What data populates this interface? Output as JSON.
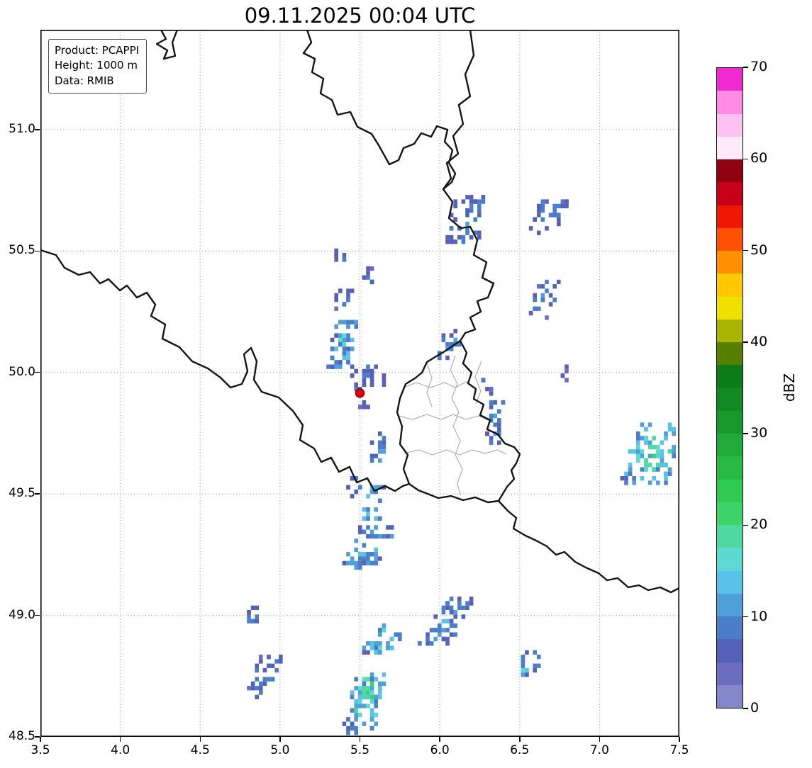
{
  "title": "09.11.2025 00:04 UTC",
  "info_box": {
    "lines": [
      "Product: PCAPPI",
      "Height: 1000 m",
      "Data: RMIB"
    ]
  },
  "chart_data": {
    "type": "heatmap",
    "title": "09.11.2025 00:04 UTC",
    "product": "PCAPPI",
    "height_label": "Height: 1000 m",
    "data_source": "RMIB",
    "axes": {
      "lon_range": [
        3.5,
        7.5
      ],
      "lat_range": [
        48.5,
        51.411
      ],
      "x_ticks": [
        3.5,
        4.0,
        4.5,
        5.0,
        5.5,
        6.0,
        6.5,
        7.0,
        7.5
      ],
      "x_tick_labels": [
        "3.5",
        "4.0",
        "4.5",
        "5.0",
        "5.5",
        "6.0",
        "6.5",
        "7.0",
        "7.5"
      ],
      "y_ticks": [
        48.5,
        49.0,
        49.5,
        50.0,
        50.5,
        51.0
      ],
      "y_tick_labels": [
        "48.5",
        "49.0",
        "49.5",
        "50.0",
        "50.5",
        "51.0"
      ],
      "grid": "dotted"
    },
    "colorbar": {
      "label": "dBZ",
      "vmin": 0,
      "vmax": 70,
      "step": 2.5,
      "ticks": [
        0,
        10,
        20,
        30,
        40,
        50,
        60,
        70
      ],
      "tick_labels": [
        "0",
        "10",
        "20",
        "30",
        "40",
        "50",
        "60",
        "70"
      ],
      "colors": [
        "#8487c9",
        "#6b6ec0",
        "#5560b8",
        "#4a7ec8",
        "#4f9fdb",
        "#58c2e8",
        "#5cd9d2",
        "#4eda9f",
        "#3cd468",
        "#2fcb50",
        "#27bb43",
        "#1fab37",
        "#17992b",
        "#108a21",
        "#0b7c18",
        "#577f00",
        "#a8b400",
        "#f0e000",
        "#ffc800",
        "#ff9000",
        "#ff5000",
        "#f01800",
        "#c60018",
        "#8f0010",
        "#ffeafa",
        "#ffc2f0",
        "#ff8ce4",
        "#ee2ad0"
      ]
    },
    "radar_site": {
      "lon": 5.5,
      "lat": 49.915,
      "color": "#e8000b",
      "edge_color": "#7a0008"
    },
    "echo_cell_size_deg": [
      0.025,
      0.018
    ],
    "echo_clusters": [
      {
        "lon": 6.17,
        "lat": 50.63,
        "dlon": 0.2,
        "dlat": 0.2,
        "n": 45,
        "max_dbz": 13,
        "shear": 0.4
      },
      {
        "lon": 6.68,
        "lat": 50.64,
        "dlon": 0.18,
        "dlat": 0.14,
        "n": 30,
        "max_dbz": 12,
        "shear": 0.6
      },
      {
        "lon": 5.37,
        "lat": 50.47,
        "dlon": 0.06,
        "dlat": 0.07,
        "n": 8,
        "max_dbz": 10,
        "shear": 0
      },
      {
        "lon": 5.56,
        "lat": 50.4,
        "dlon": 0.06,
        "dlat": 0.08,
        "n": 8,
        "max_dbz": 10,
        "shear": 0
      },
      {
        "lon": 5.39,
        "lat": 50.31,
        "dlon": 0.1,
        "dlat": 0.08,
        "n": 12,
        "max_dbz": 11,
        "shear": 0
      },
      {
        "lon": 6.65,
        "lat": 50.3,
        "dlon": 0.13,
        "dlat": 0.15,
        "n": 20,
        "max_dbz": 12,
        "shear": 0.5
      },
      {
        "lon": 5.39,
        "lat": 50.12,
        "dlon": 0.14,
        "dlat": 0.2,
        "n": 50,
        "max_dbz": 19,
        "shear": 0.2
      },
      {
        "lon": 5.52,
        "lat": 49.98,
        "dlon": 0.15,
        "dlat": 0.09,
        "n": 25,
        "max_dbz": 13,
        "shear": 0
      },
      {
        "lon": 5.53,
        "lat": 49.87,
        "dlon": 0.05,
        "dlat": 0.04,
        "n": 5,
        "max_dbz": 9,
        "shear": 0
      },
      {
        "lon": 5.66,
        "lat": 49.97,
        "dlon": 0.04,
        "dlat": 0.04,
        "n": 4,
        "max_dbz": 9,
        "shear": 0
      },
      {
        "lon": 6.06,
        "lat": 50.11,
        "dlon": 0.12,
        "dlat": 0.11,
        "n": 16,
        "max_dbz": 14,
        "shear": 0.3
      },
      {
        "lon": 6.3,
        "lat": 49.95,
        "dlon": 0.06,
        "dlat": 0.06,
        "n": 8,
        "max_dbz": 12,
        "shear": 0
      },
      {
        "lon": 6.35,
        "lat": 49.81,
        "dlon": 0.1,
        "dlat": 0.2,
        "n": 25,
        "max_dbz": 14,
        "shear": 0.2
      },
      {
        "lon": 6.78,
        "lat": 50.0,
        "dlon": 0.05,
        "dlat": 0.05,
        "n": 5,
        "max_dbz": 9,
        "shear": 0
      },
      {
        "lon": 7.34,
        "lat": 49.67,
        "dlon": 0.3,
        "dlat": 0.26,
        "n": 95,
        "max_dbz": 24,
        "shear": 0.4
      },
      {
        "lon": 5.61,
        "lat": 49.69,
        "dlon": 0.08,
        "dlat": 0.14,
        "n": 15,
        "max_dbz": 16,
        "shear": 0.2
      },
      {
        "lon": 5.47,
        "lat": 49.53,
        "dlon": 0.09,
        "dlat": 0.08,
        "n": 10,
        "max_dbz": 13,
        "shear": 0
      },
      {
        "lon": 5.58,
        "lat": 49.46,
        "dlon": 0.1,
        "dlat": 0.14,
        "n": 20,
        "max_dbz": 22,
        "shear": 0.2
      },
      {
        "lon": 5.55,
        "lat": 49.28,
        "dlon": 0.22,
        "dlat": 0.18,
        "n": 55,
        "max_dbz": 18,
        "shear": 0.8
      },
      {
        "lon": 4.83,
        "lat": 48.99,
        "dlon": 0.08,
        "dlat": 0.08,
        "n": 10,
        "max_dbz": 12,
        "shear": 0.4
      },
      {
        "lon": 4.9,
        "lat": 48.75,
        "dlon": 0.15,
        "dlat": 0.17,
        "n": 28,
        "max_dbz": 13,
        "shear": 0.5
      },
      {
        "lon": 5.66,
        "lat": 48.9,
        "dlon": 0.2,
        "dlat": 0.12,
        "n": 35,
        "max_dbz": 21,
        "shear": 1.0
      },
      {
        "lon": 6.04,
        "lat": 48.97,
        "dlon": 0.2,
        "dlat": 0.2,
        "n": 50,
        "max_dbz": 14,
        "shear": 0.9
      },
      {
        "lon": 6.56,
        "lat": 48.8,
        "dlon": 0.13,
        "dlat": 0.1,
        "n": 15,
        "max_dbz": 19,
        "shear": 0.8
      },
      {
        "lon": 5.54,
        "lat": 48.65,
        "dlon": 0.2,
        "dlat": 0.22,
        "n": 70,
        "max_dbz": 27,
        "shear": 0.3
      },
      {
        "lon": 5.43,
        "lat": 48.53,
        "dlon": 0.1,
        "dlat": 0.05,
        "n": 10,
        "max_dbz": 12,
        "shear": 0
      }
    ]
  }
}
